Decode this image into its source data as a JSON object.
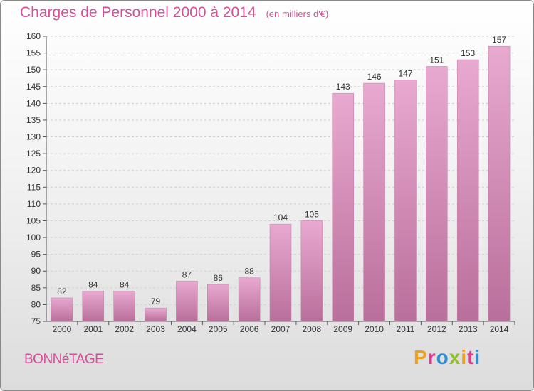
{
  "header": {
    "title": "Charges de Personnel 2000 à 2014",
    "subtitle": "(en milliers d'€)"
  },
  "footer": {
    "commune": "BONNéTAGE",
    "logo_text": "Proxiti",
    "logo_colors": [
      "#f0a020",
      "#e03a8c",
      "#2a8fd6",
      "#8fbf2a",
      "#f0a020",
      "#e03a8c",
      "#2a8fd6"
    ]
  },
  "chart_data": {
    "type": "bar",
    "title": "Charges de Personnel 2000 à 2014",
    "subtitle": "(en milliers d'€)",
    "categories": [
      "2000",
      "2001",
      "2002",
      "2003",
      "2004",
      "2005",
      "2006",
      "2007",
      "2008",
      "2009",
      "2010",
      "2011",
      "2012",
      "2013",
      "2014"
    ],
    "values": [
      82,
      84,
      84,
      79,
      87,
      86,
      88,
      104,
      105,
      143,
      146,
      147,
      151,
      153,
      157
    ],
    "ylim": [
      75,
      160
    ],
    "yticks": [
      75,
      80,
      85,
      90,
      95,
      100,
      105,
      110,
      115,
      120,
      125,
      130,
      135,
      140,
      145,
      150,
      155,
      160
    ],
    "grid": true,
    "bar_color": "#e3a2cb",
    "bar_color_dark": "#b96f9b"
  }
}
